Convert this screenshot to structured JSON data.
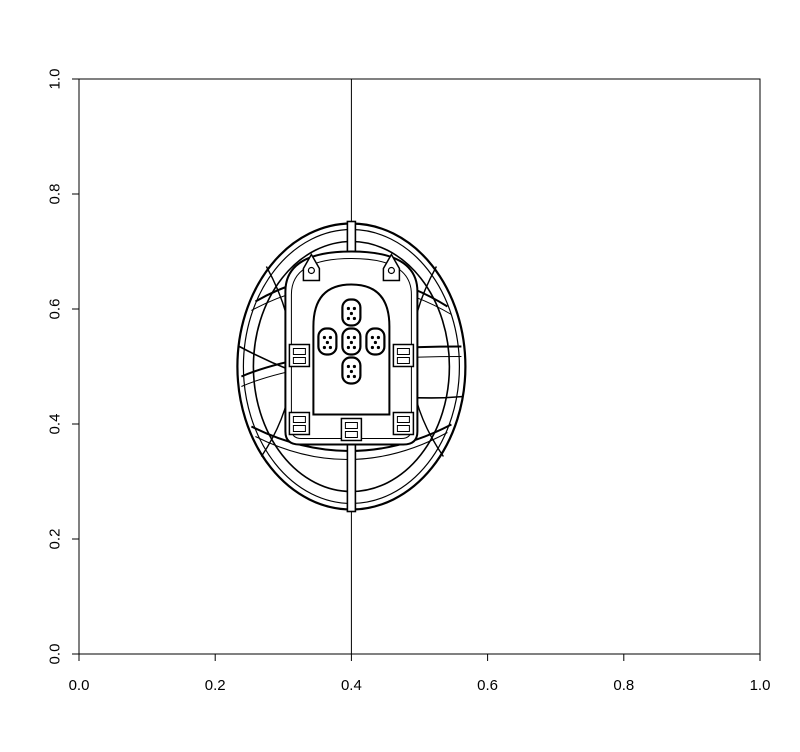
{
  "chart_data": {
    "type": "line",
    "title": "",
    "xlabel": "",
    "ylabel": "",
    "xlim": [
      0.0,
      1.0
    ],
    "ylim": [
      0.0,
      1.0
    ],
    "grid": false,
    "x_ticks": [
      "0.0",
      "0.2",
      "0.4",
      "0.6",
      "0.8",
      "1.0"
    ],
    "y_ticks": [
      "0.0",
      "0.2",
      "0.4",
      "0.6",
      "0.8",
      "1.0"
    ],
    "x_tick_values": [
      0.0,
      0.2,
      0.4,
      0.6,
      0.8,
      1.0
    ],
    "y_tick_values": [
      0.0,
      0.2,
      0.4,
      0.6,
      0.8,
      1.0
    ],
    "annotations": [
      {
        "type": "vline",
        "x": 0.4
      }
    ],
    "emblem": {
      "description": "Portuguese coat of arms (armillary sphere with shield) drawn in outline",
      "center": [
        0.4,
        0.5
      ],
      "x_range": [
        0.235,
        0.57
      ],
      "y_range": [
        0.25,
        0.75
      ],
      "color": "#000000"
    }
  }
}
